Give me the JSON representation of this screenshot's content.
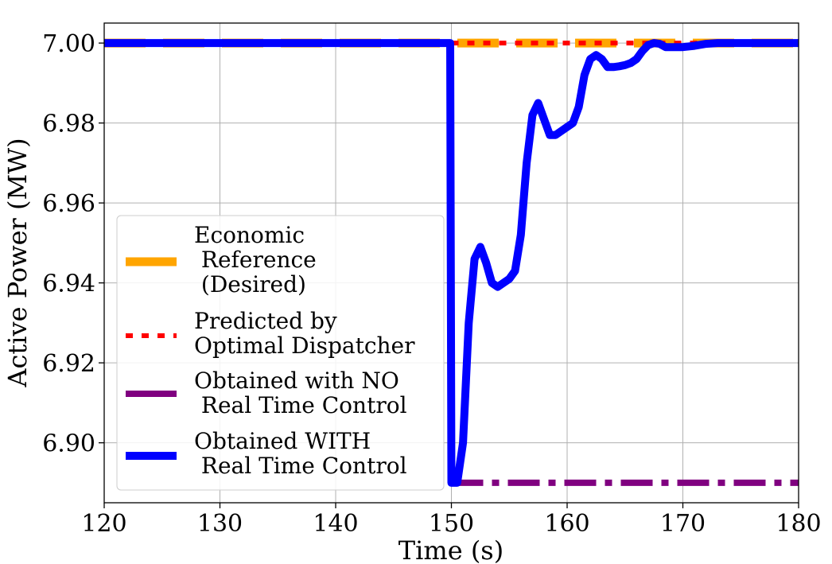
{
  "chart_data": {
    "type": "line",
    "title": "",
    "xlabel": "Time (s)",
    "ylabel": "Active Power (MW)",
    "xlim": [
      120,
      180
    ],
    "ylim": [
      6.885,
      7.005
    ],
    "grid": true,
    "legend_position": "lower-left",
    "x_ticks": [
      120,
      130,
      140,
      150,
      160,
      170,
      180
    ],
    "x_tick_labels": [
      "120",
      "130",
      "140",
      "150",
      "160",
      "170",
      "180"
    ],
    "y_ticks": [
      6.9,
      6.92,
      6.94,
      6.96,
      6.98,
      7.0
    ],
    "y_tick_labels": [
      "6.90",
      "6.92",
      "6.94",
      "6.96",
      "6.98",
      "7.00"
    ],
    "series": [
      {
        "name": "Economic\n Reference\n (Desired)",
        "color": "#ffa500",
        "style": "dashed",
        "x": [
          120,
          180
        ],
        "y": [
          7.0,
          7.0
        ]
      },
      {
        "name": "Predicted by\nOptimal Dispatcher",
        "color": "#ff0000",
        "style": "dotted",
        "x": [
          150,
          180
        ],
        "y": [
          7.0,
          7.0
        ]
      },
      {
        "name": "Obtained with NO\n Real Time Control",
        "color": "#800080",
        "style": "dashdot",
        "x": [
          150,
          180
        ],
        "y": [
          6.89,
          6.89
        ]
      },
      {
        "name": "Obtained WITH\n Real Time Control",
        "color": "#0000ff",
        "style": "solid",
        "x": [
          120,
          149.9,
          150,
          150.5,
          151,
          151.5,
          152,
          152.5,
          153,
          153.5,
          154,
          154.5,
          155,
          155.5,
          156,
          156.5,
          157,
          157.5,
          158,
          158.5,
          159,
          159.5,
          160,
          160.5,
          161,
          161.5,
          162,
          162.5,
          163,
          163.5,
          164,
          164.5,
          165,
          165.5,
          166,
          166.5,
          167,
          167.5,
          168,
          168.5,
          169,
          170,
          171,
          172,
          173,
          174,
          175,
          176,
          178,
          180
        ],
        "y": [
          7.0,
          7.0,
          6.89,
          6.89,
          6.9,
          6.93,
          6.946,
          6.949,
          6.945,
          6.94,
          6.939,
          6.94,
          6.941,
          6.943,
          6.952,
          6.97,
          6.982,
          6.985,
          6.981,
          6.977,
          6.977,
          6.978,
          6.979,
          6.98,
          6.984,
          6.992,
          6.996,
          6.997,
          6.996,
          6.994,
          6.994,
          6.9942,
          6.9945,
          6.995,
          6.996,
          6.998,
          6.9995,
          7.0,
          6.9998,
          6.999,
          6.999,
          6.999,
          6.9993,
          6.9998,
          7.0,
          7.0,
          7.0,
          7.0,
          7.0,
          7.0
        ]
      }
    ]
  }
}
